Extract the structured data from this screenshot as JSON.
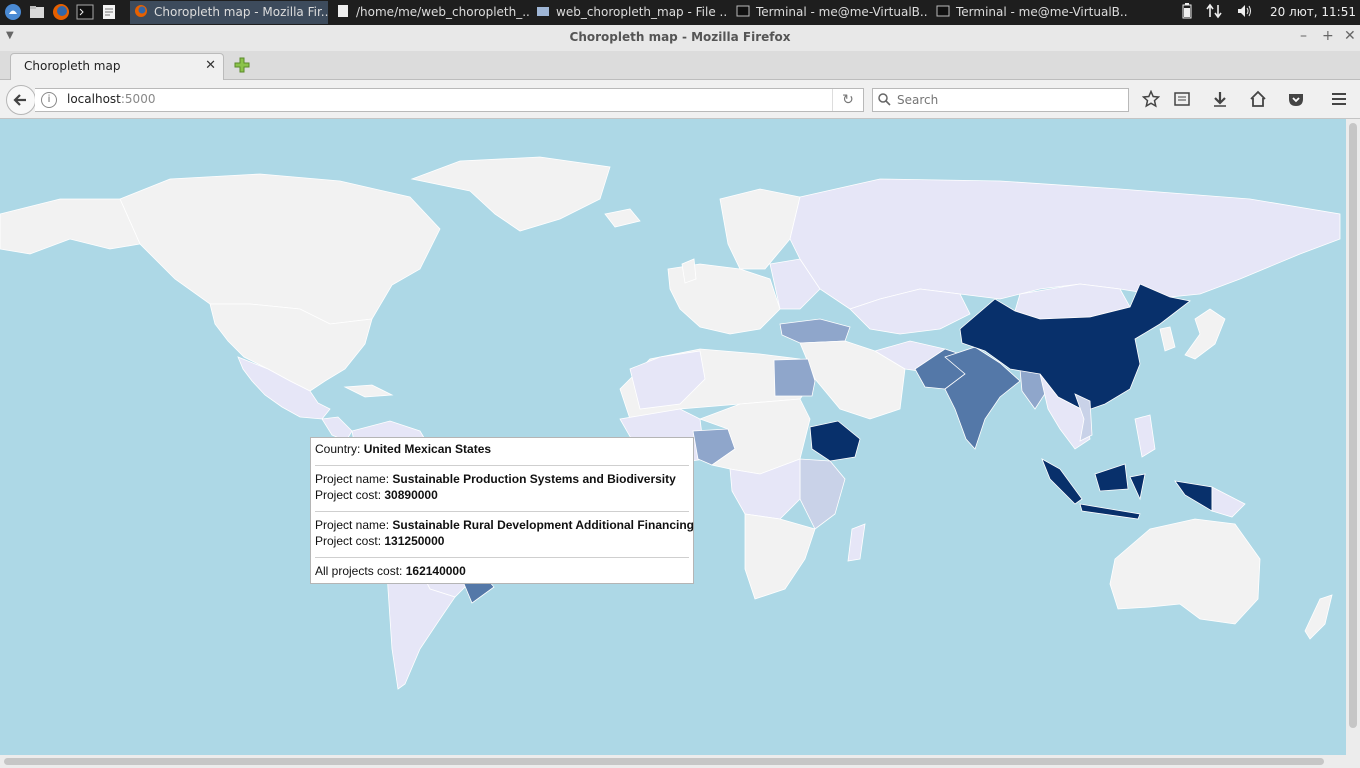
{
  "taskbar": {
    "tasks": [
      {
        "label": "Choropleth map - Mozilla Fir...",
        "active": true
      },
      {
        "label": "/home/me/web_choropleth_...",
        "active": false
      },
      {
        "label": "web_choropleth_map - File ...",
        "active": false
      },
      {
        "label": "Terminal - me@me-VirtualB...",
        "active": false
      },
      {
        "label": "Terminal - me@me-VirtualB...",
        "active": false
      }
    ],
    "clock": "20 лют, 11:51"
  },
  "window": {
    "title": "Choropleth map - Mozilla Firefox"
  },
  "tabs": [
    {
      "label": "Choropleth map"
    }
  ],
  "navbar": {
    "url_host": "localhost",
    "url_port": ":5000",
    "search_placeholder": "Search"
  },
  "map": {
    "colors": {
      "ocean": "#add8e6",
      "land_default": "#f2f2f2",
      "level_1": "#e6e6f7",
      "level_2": "#c9d2e8",
      "level_3": "#8fa6cb",
      "level_4": "#5478a8",
      "level_5": "#08306b",
      "borders": "#ffffff"
    }
  },
  "tooltip": {
    "country_label": "Country:",
    "country": "United Mexican States",
    "projects": [
      {
        "name_label": "Project name:",
        "name": "Sustainable Production Systems and Biodiversity",
        "cost_label": "Project cost:",
        "cost": "30890000"
      },
      {
        "name_label": "Project name:",
        "name": "Sustainable Rural Development Additional Financing",
        "cost_label": "Project cost:",
        "cost": "131250000"
      }
    ],
    "total_label": "All projects cost:",
    "total": "162140000"
  }
}
